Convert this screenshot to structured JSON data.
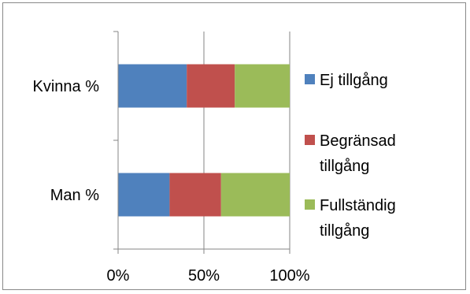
{
  "chart_data": {
    "type": "bar",
    "orientation": "horizontal",
    "stacked": "percent",
    "categories": [
      "Kvinna %",
      "Man %"
    ],
    "series": [
      {
        "name": "Ej tillgång",
        "name_lines": [
          "Ej tillgång"
        ],
        "color": "#4f81bd",
        "values": [
          40,
          30
        ]
      },
      {
        "name": "Begränsad tillgång",
        "name_lines": [
          "Begränsad",
          "tillgång"
        ],
        "color": "#c0504d",
        "values": [
          28,
          30
        ]
      },
      {
        "name": "Fullständig tillgång",
        "name_lines": [
          "Fullständig",
          "tillgång"
        ],
        "color": "#9bbb59",
        "values": [
          32,
          40
        ]
      }
    ],
    "x_ticks": [
      "0%",
      "50%",
      "100%"
    ],
    "xlim": [
      0,
      100
    ],
    "xlabel": "",
    "ylabel": "",
    "title": "",
    "grid": "vertical",
    "legend_position": "right"
  }
}
